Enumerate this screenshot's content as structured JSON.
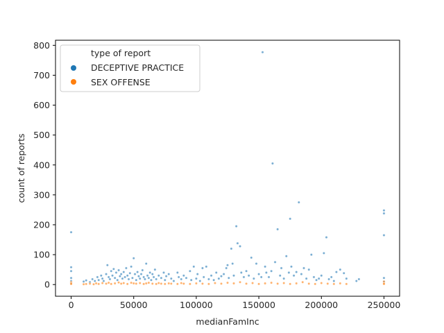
{
  "chart_data": {
    "type": "scatter",
    "xlabel": "medianFamInc",
    "ylabel": "count of reports",
    "xlim": [
      -12500,
      262500
    ],
    "ylim": [
      -39,
      817
    ],
    "x_ticks": [
      0,
      50000,
      100000,
      150000,
      200000,
      250000
    ],
    "y_ticks": [
      0,
      100,
      200,
      300,
      400,
      500,
      600,
      700,
      800
    ],
    "grid": false,
    "legend": {
      "title": "type of report",
      "placement": "top-left"
    },
    "series": [
      {
        "name": "DECEPTIVE PRACTICE",
        "color": "#1f77b4",
        "points": [
          [
            0,
            175
          ],
          [
            0,
            58
          ],
          [
            0,
            45
          ],
          [
            0,
            22
          ],
          [
            0,
            12
          ],
          [
            0,
            5
          ],
          [
            10000,
            10
          ],
          [
            12000,
            14
          ],
          [
            15000,
            8
          ],
          [
            17000,
            18
          ],
          [
            19000,
            12
          ],
          [
            21000,
            25
          ],
          [
            22000,
            15
          ],
          [
            24000,
            30
          ],
          [
            25000,
            20
          ],
          [
            26000,
            12
          ],
          [
            28000,
            35
          ],
          [
            29000,
            65
          ],
          [
            30000,
            25
          ],
          [
            31000,
            18
          ],
          [
            32000,
            45
          ],
          [
            33000,
            30
          ],
          [
            34000,
            52
          ],
          [
            35000,
            22
          ],
          [
            36000,
            40
          ],
          [
            37000,
            15
          ],
          [
            38000,
            48
          ],
          [
            39000,
            28
          ],
          [
            40000,
            35
          ],
          [
            41000,
            20
          ],
          [
            42000,
            42
          ],
          [
            43000,
            25
          ],
          [
            44000,
            55
          ],
          [
            45000,
            30
          ],
          [
            46000,
            18
          ],
          [
            47000,
            38
          ],
          [
            48000,
            60
          ],
          [
            49000,
            22
          ],
          [
            50000,
            88
          ],
          [
            51000,
            35
          ],
          [
            52000,
            15
          ],
          [
            53000,
            42
          ],
          [
            54000,
            28
          ],
          [
            55000,
            20
          ],
          [
            56000,
            35
          ],
          [
            57000,
            48
          ],
          [
            58000,
            25
          ],
          [
            59000,
            18
          ],
          [
            60000,
            70
          ],
          [
            61000,
            30
          ],
          [
            62000,
            22
          ],
          [
            63000,
            40
          ],
          [
            64000,
            15
          ],
          [
            65000,
            35
          ],
          [
            66000,
            25
          ],
          [
            67000,
            50
          ],
          [
            68000,
            18
          ],
          [
            70000,
            30
          ],
          [
            72000,
            22
          ],
          [
            74000,
            40
          ],
          [
            75000,
            15
          ],
          [
            76000,
            28
          ],
          [
            78000,
            35
          ],
          [
            80000,
            20
          ],
          [
            82000,
            12
          ],
          [
            85000,
            40
          ],
          [
            86000,
            25
          ],
          [
            88000,
            18
          ],
          [
            90000,
            30
          ],
          [
            92000,
            22
          ],
          [
            95000,
            45
          ],
          [
            96000,
            15
          ],
          [
            98000,
            60
          ],
          [
            100000,
            20
          ],
          [
            101000,
            35
          ],
          [
            103000,
            12
          ],
          [
            105000,
            55
          ],
          [
            106000,
            25
          ],
          [
            108000,
            60
          ],
          [
            110000,
            18
          ],
          [
            112000,
            30
          ],
          [
            114000,
            15
          ],
          [
            116000,
            40
          ],
          [
            118000,
            20
          ],
          [
            120000,
            28
          ],
          [
            122000,
            35
          ],
          [
            124000,
            55
          ],
          [
            125000,
            65
          ],
          [
            126000,
            22
          ],
          [
            128000,
            120
          ],
          [
            129000,
            70
          ],
          [
            130000,
            30
          ],
          [
            132000,
            195
          ],
          [
            133000,
            138
          ],
          [
            135000,
            128
          ],
          [
            136000,
            40
          ],
          [
            138000,
            25
          ],
          [
            140000,
            45
          ],
          [
            142000,
            30
          ],
          [
            144000,
            90
          ],
          [
            146000,
            20
          ],
          [
            148000,
            70
          ],
          [
            150000,
            35
          ],
          [
            152000,
            25
          ],
          [
            153000,
            777
          ],
          [
            155000,
            60
          ],
          [
            156000,
            40
          ],
          [
            158000,
            25
          ],
          [
            160000,
            45
          ],
          [
            161000,
            405
          ],
          [
            163000,
            75
          ],
          [
            165000,
            185
          ],
          [
            167000,
            30
          ],
          [
            168000,
            55
          ],
          [
            170000,
            20
          ],
          [
            172000,
            95
          ],
          [
            174000,
            40
          ],
          [
            175000,
            220
          ],
          [
            176000,
            60
          ],
          [
            178000,
            30
          ],
          [
            180000,
            42
          ],
          [
            182000,
            275
          ],
          [
            184000,
            35
          ],
          [
            186000,
            55
          ],
          [
            188000,
            20
          ],
          [
            190000,
            50
          ],
          [
            192000,
            100
          ],
          [
            194000,
            25
          ],
          [
            196000,
            15
          ],
          [
            198000,
            20
          ],
          [
            200000,
            30
          ],
          [
            202000,
            105
          ],
          [
            204000,
            158
          ],
          [
            206000,
            18
          ],
          [
            208000,
            25
          ],
          [
            210000,
            12
          ],
          [
            212000,
            42
          ],
          [
            215000,
            50
          ],
          [
            218000,
            38
          ],
          [
            220000,
            20
          ],
          [
            228000,
            12
          ],
          [
            230000,
            18
          ],
          [
            250000,
            248
          ],
          [
            250000,
            238
          ],
          [
            250000,
            165
          ],
          [
            250000,
            22
          ],
          [
            250000,
            10
          ]
        ]
      },
      {
        "name": "SEX OFFENSE",
        "color": "#ff7f0e",
        "points": [
          [
            0,
            8
          ],
          [
            0,
            4
          ],
          [
            0,
            2
          ],
          [
            10000,
            1
          ],
          [
            12000,
            2
          ],
          [
            15000,
            3
          ],
          [
            18000,
            1
          ],
          [
            20000,
            4
          ],
          [
            22000,
            2
          ],
          [
            25000,
            5
          ],
          [
            28000,
            3
          ],
          [
            30000,
            6
          ],
          [
            32000,
            2
          ],
          [
            35000,
            4
          ],
          [
            38000,
            7
          ],
          [
            40000,
            3
          ],
          [
            42000,
            5
          ],
          [
            45000,
            2
          ],
          [
            48000,
            6
          ],
          [
            50000,
            4
          ],
          [
            52000,
            3
          ],
          [
            55000,
            5
          ],
          [
            58000,
            2
          ],
          [
            60000,
            4
          ],
          [
            62000,
            6
          ],
          [
            65000,
            3
          ],
          [
            68000,
            2
          ],
          [
            70000,
            5
          ],
          [
            72000,
            3
          ],
          [
            75000,
            2
          ],
          [
            78000,
            4
          ],
          [
            80000,
            3
          ],
          [
            85000,
            2
          ],
          [
            88000,
            5
          ],
          [
            90000,
            3
          ],
          [
            95000,
            2
          ],
          [
            100000,
            4
          ],
          [
            105000,
            3
          ],
          [
            110000,
            2
          ],
          [
            115000,
            5
          ],
          [
            120000,
            3
          ],
          [
            125000,
            6
          ],
          [
            130000,
            4
          ],
          [
            135000,
            8
          ],
          [
            140000,
            3
          ],
          [
            145000,
            5
          ],
          [
            150000,
            2
          ],
          [
            155000,
            4
          ],
          [
            160000,
            6
          ],
          [
            165000,
            3
          ],
          [
            170000,
            5
          ],
          [
            175000,
            2
          ],
          [
            180000,
            4
          ],
          [
            185000,
            8
          ],
          [
            190000,
            3
          ],
          [
            195000,
            2
          ],
          [
            200000,
            5
          ],
          [
            205000,
            3
          ],
          [
            210000,
            2
          ],
          [
            215000,
            4
          ],
          [
            220000,
            2
          ],
          [
            250000,
            10
          ],
          [
            250000,
            4
          ],
          [
            250000,
            2
          ]
        ]
      }
    ]
  }
}
